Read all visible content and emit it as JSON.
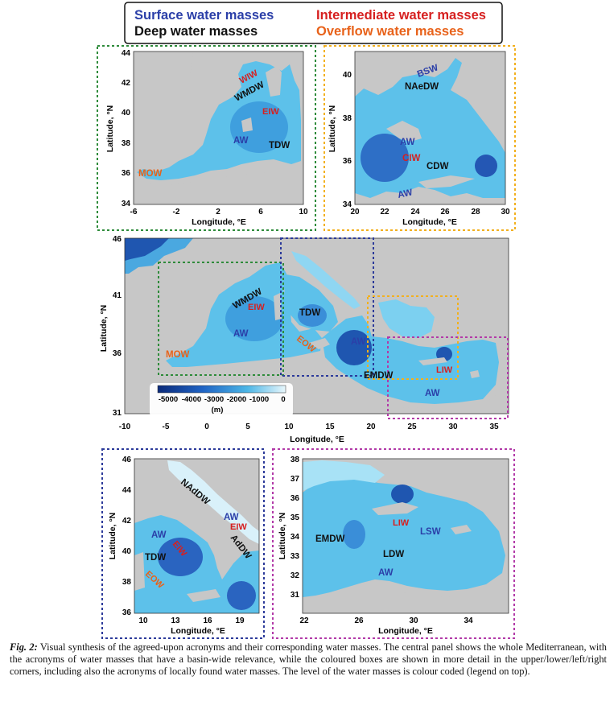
{
  "legend": {
    "surface": "Surface water masses",
    "intermediate": "Intermediate water masses",
    "deep": "Deep water masses",
    "overflow": "Overflow water masses"
  },
  "colors": {
    "surface": "#2b3fa8",
    "intermediate": "#d62020",
    "deep": "#111111",
    "overflow": "#e8621a",
    "land": "#c7c7c7",
    "frame_green": "#2e8b3a",
    "frame_yellow": "#f2b01e",
    "frame_blue": "#2c3a9a",
    "frame_magenta": "#b23aa8"
  },
  "axes": {
    "latitude_label": "Latitude, °N",
    "longitude_label": "Longitude, °E"
  },
  "panels": {
    "western": {
      "yticks": [
        "44",
        "42",
        "40",
        "38",
        "36",
        "34"
      ],
      "xticks": [
        "-6",
        "-2",
        "2",
        "6",
        "10"
      ],
      "labels": {
        "wiw": "WIW",
        "wmdw": "WMDW",
        "eiw": "EIW",
        "aw": "AW",
        "tdw": "TDW",
        "mow": "MOW"
      }
    },
    "aegean": {
      "yticks": [
        "40",
        "38",
        "36",
        "34"
      ],
      "xticks": [
        "20",
        "22",
        "24",
        "26",
        "28",
        "30"
      ],
      "labels": {
        "bsw": "BSW",
        "naedw": "NAeDW",
        "aw1": "AW",
        "ciw": "CIW",
        "cdw": "CDW",
        "aw2": "AW"
      }
    },
    "central": {
      "yticks": [
        "46",
        "41",
        "36",
        "31"
      ],
      "xticks": [
        "-10",
        "-5",
        "0",
        "5",
        "10",
        "15",
        "20",
        "25",
        "30",
        "35"
      ],
      "labels": {
        "wmdw": "WMDW",
        "eiw": "EIW",
        "aw1": "AW",
        "mow": "MOW",
        "tdw": "TDW",
        "eow": "EOW",
        "aw2": "AW",
        "emdw": "EMDW",
        "liw": "LIW",
        "aw3": "AW"
      },
      "colorbar": {
        "ticks": [
          "-5000",
          "-4000",
          "-3000",
          "-2000",
          "-1000",
          "0"
        ],
        "unit": "(m)"
      }
    },
    "tyrrhenian": {
      "yticks": [
        "46",
        "44",
        "42",
        "40",
        "38",
        "36"
      ],
      "xticks": [
        "10",
        "13",
        "16",
        "19"
      ],
      "labels": {
        "naddw": "NAdDW",
        "aw1": "AW",
        "eiw1": "EIW",
        "aw2": "AW",
        "eiw2": "EIW",
        "addw": "AdDW",
        "tdw": "TDW",
        "eow": "EOW"
      }
    },
    "levantine": {
      "yticks": [
        "38",
        "37",
        "36",
        "35",
        "34",
        "33",
        "32",
        "31"
      ],
      "xticks": [
        "22",
        "26",
        "30",
        "34"
      ],
      "labels": {
        "liw": "LIW",
        "lsw": "LSW",
        "emdw": "EMDW",
        "ldw": "LDW",
        "aw": "AW"
      }
    }
  },
  "caption": {
    "label": "Fig. 2:",
    "text": " Visual synthesis of the agreed-upon acronyms and their corresponding water masses. The central panel shows the whole Mediterranean, with the acronyms of water masses that have a basin-wide relevance, while the coloured boxes are shown in more detail in the upper/lower/left/right corners, including also the acronyms of locally found water masses. The level of the water masses is colour coded (legend on top)."
  }
}
